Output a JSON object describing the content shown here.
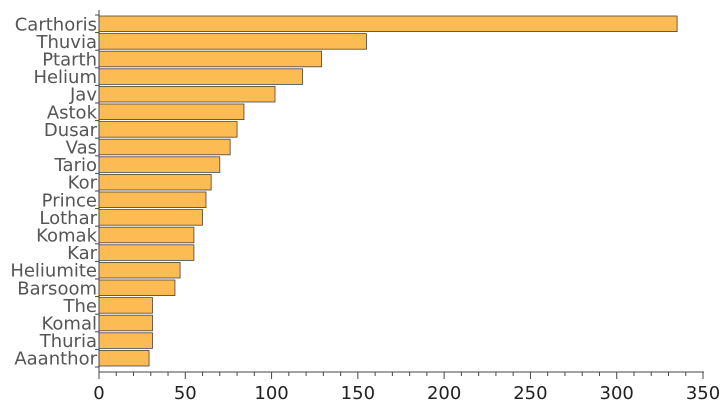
{
  "chart_data": {
    "type": "bar",
    "orientation": "horizontal",
    "categories": [
      "Carthoris",
      "Thuvia",
      "Ptarth",
      "Helium",
      "Jav",
      "Astok",
      "Dusar",
      "Vas",
      "Tario",
      "Kor",
      "Prince",
      "Lothar",
      "Komak",
      "Kar",
      "Heliumite",
      "Barsoom",
      "The",
      "Komal",
      "Thuria",
      "Aaanthor"
    ],
    "values": [
      335,
      155,
      129,
      118,
      102,
      84,
      80,
      76,
      70,
      65,
      62,
      60,
      55,
      55,
      47,
      44,
      31,
      31,
      31,
      29
    ],
    "xlim": [
      0,
      350
    ],
    "xticks": [
      0,
      50,
      100,
      150,
      200,
      250,
      300,
      350
    ],
    "title": "",
    "xlabel": "",
    "ylabel": "",
    "grid": false,
    "colors": {
      "bar": "#FDBB53",
      "bar_edge": "#444444",
      "axis": "#444444"
    }
  }
}
